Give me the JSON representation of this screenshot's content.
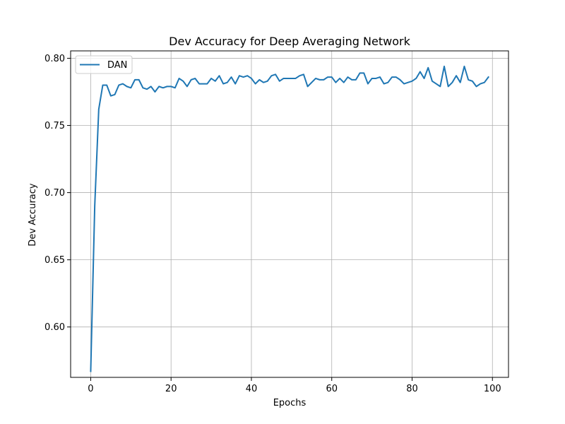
{
  "chart_data": {
    "type": "line",
    "title": "Dev Accuracy for Deep Averaging Network",
    "xlabel": "Epochs",
    "ylabel": "Dev Accuracy",
    "xlim": [
      -5,
      104
    ],
    "ylim": [
      0.5625,
      0.8055
    ],
    "xticks": [
      0,
      20,
      40,
      60,
      80,
      100
    ],
    "yticks": [
      0.6,
      0.65,
      0.7,
      0.75,
      0.8
    ],
    "xtick_labels": [
      "0",
      "20",
      "40",
      "60",
      "80",
      "100"
    ],
    "ytick_labels": [
      "0.60",
      "0.65",
      "0.70",
      "0.75",
      "0.80"
    ],
    "grid": true,
    "legend_position": "top-left",
    "color": "#1f77b4",
    "series": [
      {
        "name": "DAN",
        "x": [
          0,
          1,
          2,
          3,
          4,
          5,
          6,
          7,
          8,
          9,
          10,
          11,
          12,
          13,
          14,
          15,
          16,
          17,
          18,
          19,
          20,
          21,
          22,
          23,
          24,
          25,
          26,
          27,
          28,
          29,
          30,
          31,
          32,
          33,
          34,
          35,
          36,
          37,
          38,
          39,
          40,
          41,
          42,
          43,
          44,
          45,
          46,
          47,
          48,
          49,
          50,
          51,
          52,
          53,
          54,
          55,
          56,
          57,
          58,
          59,
          60,
          61,
          62,
          63,
          64,
          65,
          66,
          67,
          68,
          69,
          70,
          71,
          72,
          73,
          74,
          75,
          76,
          77,
          78,
          79,
          80,
          81,
          82,
          83,
          84,
          85,
          86,
          87,
          88,
          89,
          90,
          91,
          92,
          93,
          94,
          95,
          96,
          97,
          98,
          99
        ],
        "values": [
          0.567,
          0.69,
          0.762,
          0.78,
          0.78,
          0.772,
          0.773,
          0.78,
          0.781,
          0.779,
          0.778,
          0.784,
          0.784,
          0.778,
          0.777,
          0.779,
          0.775,
          0.779,
          0.778,
          0.779,
          0.779,
          0.778,
          0.785,
          0.783,
          0.779,
          0.784,
          0.785,
          0.781,
          0.781,
          0.781,
          0.785,
          0.783,
          0.787,
          0.781,
          0.782,
          0.786,
          0.781,
          0.787,
          0.786,
          0.787,
          0.785,
          0.781,
          0.784,
          0.782,
          0.783,
          0.787,
          0.788,
          0.783,
          0.785,
          0.785,
          0.785,
          0.785,
          0.787,
          0.788,
          0.779,
          0.782,
          0.785,
          0.784,
          0.784,
          0.786,
          0.786,
          0.782,
          0.785,
          0.782,
          0.786,
          0.784,
          0.784,
          0.789,
          0.789,
          0.781,
          0.785,
          0.785,
          0.786,
          0.781,
          0.782,
          0.786,
          0.786,
          0.784,
          0.781,
          0.782,
          0.783,
          0.785,
          0.79,
          0.785,
          0.793,
          0.783,
          0.781,
          0.779,
          0.794,
          0.779,
          0.782,
          0.787,
          0.782,
          0.794,
          0.784,
          0.783,
          0.779,
          0.781,
          0.782,
          0.786
        ]
      }
    ]
  }
}
